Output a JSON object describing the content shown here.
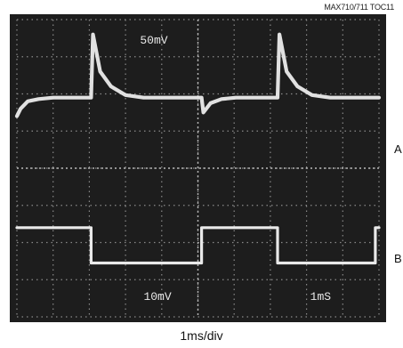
{
  "figure_id": "MAX710/711 TOC11",
  "chart_data": {
    "type": "line",
    "title": "",
    "xlabel": "1ms/div",
    "ylabel": "",
    "grid": true,
    "xlim": [
      0,
      10
    ],
    "ylim": [
      -4,
      4
    ],
    "divisions": {
      "x": 10,
      "y": 8
    },
    "screen_labels": [
      "50mV",
      "10mV",
      "1mS"
    ],
    "series": [
      {
        "name": "A",
        "scale": "50mV",
        "x": [
          0,
          0.1,
          0.3,
          0.6,
          1,
          1.5,
          2.05,
          2.1,
          2.3,
          2.6,
          3,
          3.5,
          4,
          4.5,
          5.1,
          5.15,
          5.35,
          5.65,
          6.05,
          6.55,
          7.2,
          7.25,
          7.45,
          7.75,
          8.15,
          8.65,
          9.2,
          9.9,
          10
        ],
        "values": [
          1.4,
          1.6,
          1.8,
          1.86,
          1.9,
          1.9,
          1.9,
          3.6,
          2.6,
          2.2,
          1.97,
          1.9,
          1.9,
          1.9,
          1.9,
          1.5,
          1.75,
          1.86,
          1.9,
          1.9,
          1.9,
          3.6,
          2.6,
          2.2,
          1.97,
          1.9,
          1.9,
          1.9,
          1.9
        ]
      },
      {
        "name": "B",
        "scale": "10mV",
        "x": [
          0,
          2.05,
          2.05,
          5.1,
          5.1,
          7.2,
          7.2,
          9.9,
          9.9,
          10
        ],
        "values": [
          -1.6,
          -1.6,
          -2.55,
          -2.55,
          -1.6,
          -1.6,
          -2.55,
          -2.55,
          -1.6,
          -1.6
        ]
      }
    ]
  }
}
